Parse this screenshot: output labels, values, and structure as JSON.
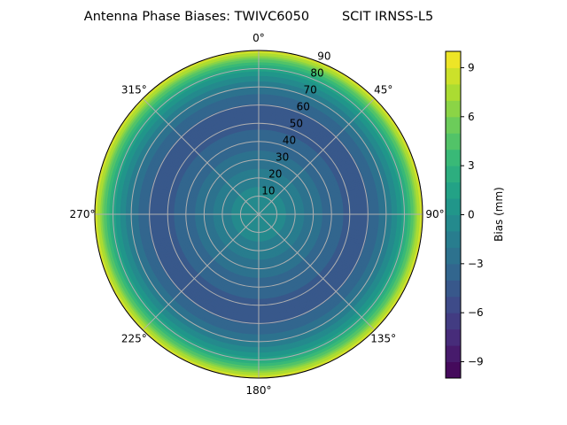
{
  "chart_data": {
    "type": "polar-contour",
    "title": "Antenna Phase Biases: TWIVC6050        SCIT IRNSS-L5",
    "angular_ticks": [
      "0°",
      "45°",
      "90°",
      "135°",
      "180°",
      "225°",
      "270°",
      "315°"
    ],
    "radial_ticks": [
      "10",
      "20",
      "30",
      "40",
      "50",
      "60",
      "70",
      "80",
      "90"
    ],
    "radial_range": [
      0,
      90
    ],
    "grid": true,
    "colormap": "viridis",
    "colorbar": {
      "label": "Bias (mm)",
      "range": [
        -10,
        10
      ],
      "level_step": 1,
      "ticks": [
        "9",
        "6",
        "3",
        "0",
        "−3",
        "−6",
        "−9"
      ],
      "tick_values": [
        9,
        6,
        3,
        0,
        -3,
        -6,
        -9
      ]
    },
    "profile": {
      "zenith_deg": [
        0,
        10,
        20,
        30,
        40,
        50,
        55,
        60,
        65,
        70,
        75,
        80,
        85,
        90
      ],
      "bias_mm": [
        0,
        -0.5,
        -1.5,
        -2.5,
        -3.5,
        -4.3,
        -4.5,
        -4.1,
        -3.2,
        -2.0,
        -0.4,
        1.6,
        5.0,
        9.5
      ]
    }
  }
}
